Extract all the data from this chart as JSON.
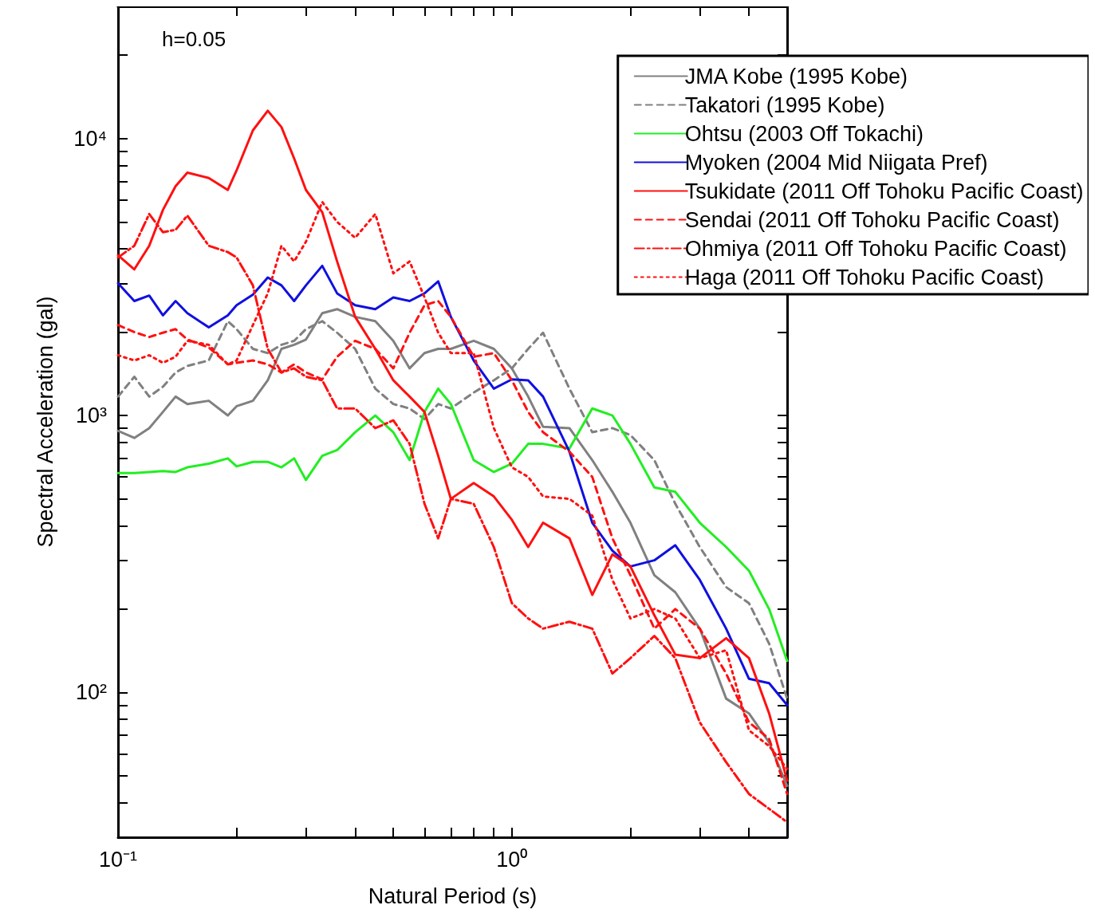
{
  "chart_data": {
    "type": "line",
    "xlabel": "Natural Period (s)",
    "ylabel": "Spectral Acceleration (gal)",
    "annotations": [
      "h=0.05"
    ],
    "log": "xy",
    "grid": false,
    "legend": "top right",
    "xlim": [
      0.1,
      5
    ],
    "ylim": [
      30,
      30000
    ],
    "xticks": [
      {
        "value": 0.1,
        "label": "10⁻¹"
      },
      {
        "value": 0.2,
        "label": null
      },
      {
        "value": 0.3,
        "label": null
      },
      {
        "value": 0.4,
        "label": null
      },
      {
        "value": 0.5,
        "label": null
      },
      {
        "value": 0.6,
        "label": null
      },
      {
        "value": 0.7,
        "label": null
      },
      {
        "value": 0.8,
        "label": null
      },
      {
        "value": 0.9,
        "label": null
      },
      {
        "value": 1,
        "label": "10⁰"
      },
      {
        "value": 2,
        "label": null
      },
      {
        "value": 3,
        "label": null
      },
      {
        "value": 4,
        "label": null
      },
      {
        "value": 5,
        "label": null
      }
    ],
    "yticks": [
      {
        "value": 40,
        "label": null
      },
      {
        "value": 50,
        "label": null
      },
      {
        "value": 60,
        "label": null
      },
      {
        "value": 70,
        "label": null
      },
      {
        "value": 80,
        "label": null
      },
      {
        "value": 90,
        "label": null
      },
      {
        "value": 100,
        "label": "10²"
      },
      {
        "value": 200,
        "label": null
      },
      {
        "value": 300,
        "label": null
      },
      {
        "value": 400,
        "label": null
      },
      {
        "value": 500,
        "label": null
      },
      {
        "value": 600,
        "label": null
      },
      {
        "value": 700,
        "label": null
      },
      {
        "value": 800,
        "label": null
      },
      {
        "value": 900,
        "label": null
      },
      {
        "value": 1000,
        "label": "10³"
      },
      {
        "value": 2000,
        "label": null
      },
      {
        "value": 3000,
        "label": null
      },
      {
        "value": 4000,
        "label": null
      },
      {
        "value": 5000,
        "label": null
      },
      {
        "value": 6000,
        "label": null
      },
      {
        "value": 7000,
        "label": null
      },
      {
        "value": 8000,
        "label": null
      },
      {
        "value": 9000,
        "label": null
      },
      {
        "value": 10000,
        "label": "10⁴"
      },
      {
        "value": 20000,
        "label": null
      }
    ],
    "x": [
      0.1,
      0.11,
      0.12,
      0.13,
      0.14,
      0.15,
      0.17,
      0.19,
      0.2,
      0.22,
      0.24,
      0.26,
      0.28,
      0.3,
      0.33,
      0.36,
      0.4,
      0.45,
      0.5,
      0.55,
      0.6,
      0.65,
      0.7,
      0.8,
      0.9,
      1.0,
      1.1,
      1.2,
      1.4,
      1.6,
      1.8,
      2.0,
      2.3,
      2.6,
      3.0,
      3.5,
      4.0,
      4.5,
      5.0
    ],
    "series": [
      {
        "name": "JMA Kobe (1995 Kobe)",
        "color": "#808080",
        "line_style": "solid",
        "values": [
          880,
          830,
          900,
          1030,
          1170,
          1100,
          1130,
          1000,
          1080,
          1130,
          1340,
          1740,
          1800,
          1880,
          2340,
          2420,
          2270,
          2190,
          1860,
          1480,
          1680,
          1740,
          1740,
          1860,
          1740,
          1480,
          1170,
          910,
          900,
          690,
          530,
          410,
          265,
          230,
          170,
          95,
          84,
          66,
          46
        ]
      },
      {
        "name": "Takatori (1995 Kobe)",
        "color": "#808080",
        "line_style": "dashed",
        "values": [
          1170,
          1380,
          1170,
          1270,
          1430,
          1510,
          1580,
          2190,
          2050,
          1740,
          1680,
          1800,
          1860,
          2050,
          2190,
          1990,
          1740,
          1250,
          1100,
          1060,
          970,
          1100,
          1060,
          1210,
          1340,
          1480,
          1740,
          1990,
          1250,
          870,
          900,
          850,
          690,
          480,
          335,
          240,
          210,
          150,
          95
        ]
      },
      {
        "name": "Ohtsu (2003 Off Tokachi)",
        "color": "#22ee22",
        "line_style": "solid",
        "values": [
          620,
          620,
          625,
          630,
          625,
          650,
          670,
          700,
          655,
          680,
          680,
          650,
          700,
          585,
          715,
          750,
          870,
          1000,
          870,
          690,
          1030,
          1250,
          1100,
          690,
          625,
          670,
          790,
          790,
          760,
          1060,
          1000,
          790,
          550,
          530,
          410,
          335,
          275,
          200,
          130
        ]
      },
      {
        "name": "Myoken (2004 Mid Niigata Pref)",
        "color": "#1010e0",
        "line_style": "solid",
        "values": [
          3000,
          2590,
          2710,
          2300,
          2590,
          2340,
          2080,
          2300,
          2500,
          2730,
          3150,
          2950,
          2590,
          2950,
          3470,
          2760,
          2500,
          2420,
          2670,
          2590,
          2760,
          3050,
          2270,
          1580,
          1250,
          1350,
          1340,
          1170,
          740,
          410,
          325,
          285,
          300,
          340,
          255,
          170,
          112,
          108,
          90
        ]
      },
      {
        "name": "Tsukidate (2011 Off Tohoku Pacific Coast)",
        "color": "#ff1010",
        "line_style": "solid",
        "values": [
          3790,
          3370,
          4100,
          5520,
          6730,
          7530,
          7200,
          6520,
          7670,
          10700,
          12600,
          11000,
          8470,
          6520,
          5420,
          3600,
          2270,
          1740,
          1340,
          1170,
          1030,
          715,
          500,
          570,
          510,
          420,
          335,
          410,
          360,
          225,
          315,
          285,
          190,
          137,
          133,
          157,
          133,
          84,
          48
        ]
      },
      {
        "name": "Sendai (2011 Off Tohoku Pacific Coast)",
        "color": "#ff1010",
        "line_style": "dashed",
        "values": [
          2120,
          2000,
          1920,
          1990,
          2050,
          1880,
          1760,
          1530,
          1550,
          1580,
          1530,
          1430,
          1530,
          1430,
          1350,
          1630,
          1860,
          1740,
          1480,
          1990,
          2500,
          2590,
          2270,
          1630,
          1680,
          1340,
          1030,
          870,
          740,
          600,
          360,
          265,
          170,
          200,
          170,
          117,
          78,
          68,
          43
        ]
      },
      {
        "name": "Ohmiya (2011 Off Tohoku Pacific Coast)",
        "color": "#ff1010",
        "line_style": "dashdot",
        "values": [
          3720,
          4100,
          5340,
          4590,
          4680,
          5270,
          4100,
          3890,
          3720,
          2950,
          1740,
          1430,
          1480,
          1380,
          1340,
          1060,
          1060,
          900,
          960,
          790,
          480,
          360,
          500,
          480,
          335,
          210,
          185,
          170,
          180,
          170,
          117,
          133,
          160,
          133,
          78,
          56,
          43,
          38,
          34
        ]
      },
      {
        "name": "Haga (2011 Off Tohoku Pacific Coast)",
        "color": "#ff1010",
        "line_style": "dotted",
        "values": [
          1650,
          1580,
          1650,
          1550,
          1630,
          1860,
          1800,
          1530,
          1580,
          2120,
          2760,
          4100,
          3600,
          4240,
          5900,
          5000,
          4380,
          5340,
          3260,
          3600,
          2670,
          1990,
          1680,
          1680,
          900,
          650,
          600,
          510,
          500,
          435,
          255,
          185,
          200,
          185,
          133,
          142,
          73,
          64,
          53
        ]
      }
    ]
  }
}
